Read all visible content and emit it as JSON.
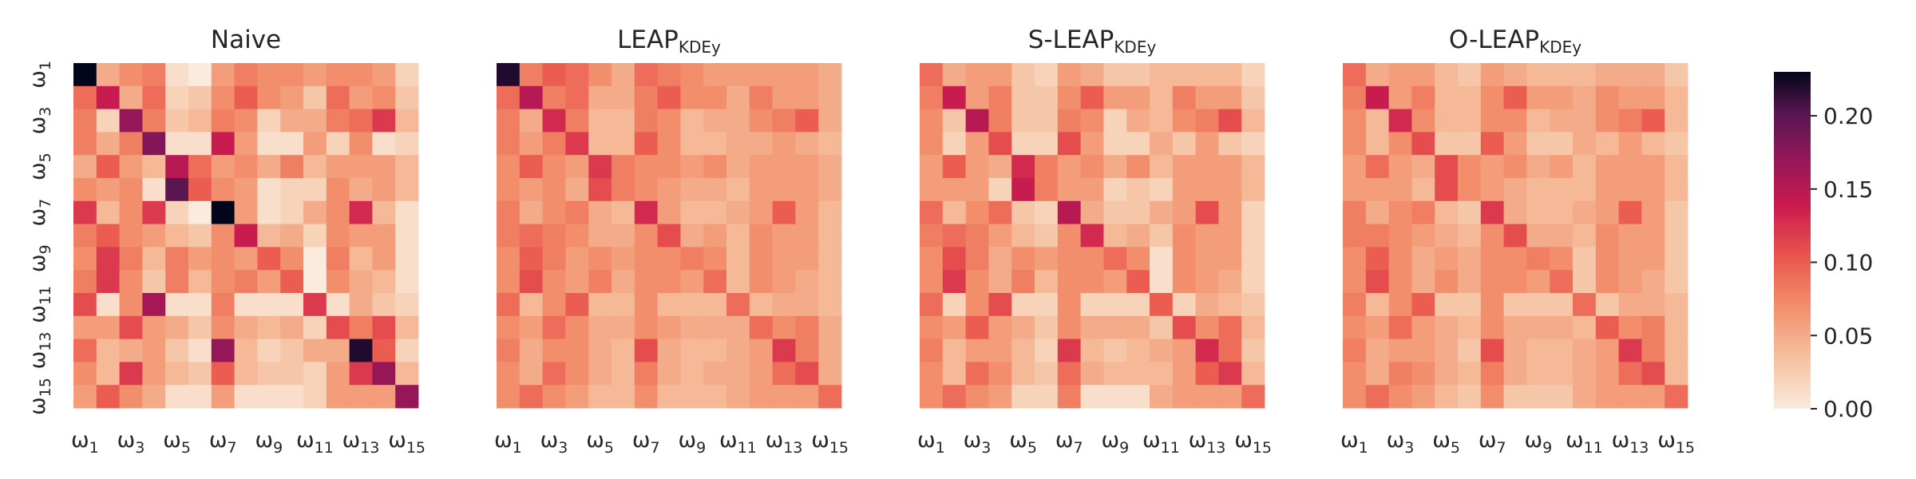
{
  "chart_data": {
    "type": "heatmap",
    "colormap": "rocket_r",
    "colorbar": {
      "range": [
        0,
        0.23
      ],
      "ticks": [
        "0.00",
        "0.05",
        "0.10",
        "0.15",
        "0.20"
      ]
    },
    "x_tick_labels": [
      {
        "base": "ω",
        "sub": "1"
      },
      {
        "base": "ω",
        "sub": "3"
      },
      {
        "base": "ω",
        "sub": "5"
      },
      {
        "base": "ω",
        "sub": "7"
      },
      {
        "base": "ω",
        "sub": "9"
      },
      {
        "base": "ω",
        "sub": "11"
      },
      {
        "base": "ω",
        "sub": "13"
      },
      {
        "base": "ω",
        "sub": "15"
      }
    ],
    "y_tick_labels": [
      {
        "base": "ω",
        "sub": "1"
      },
      {
        "base": "ω",
        "sub": "3"
      },
      {
        "base": "ω",
        "sub": "5"
      },
      {
        "base": "ω",
        "sub": "7"
      },
      {
        "base": "ω",
        "sub": "9"
      },
      {
        "base": "ω",
        "sub": "11"
      },
      {
        "base": "ω",
        "sub": "13"
      },
      {
        "base": "ω",
        "sub": "15"
      }
    ],
    "panels": [
      {
        "title": "Naive",
        "title_sub": "",
        "matrix": [
          [
            0.23,
            0.05,
            0.07,
            0.08,
            0.01,
            0.0,
            0.06,
            0.08,
            0.07,
            0.07,
            0.06,
            0.07,
            0.07,
            0.06,
            0.02
          ],
          [
            0.09,
            0.14,
            0.05,
            0.09,
            0.02,
            0.03,
            0.07,
            0.1,
            0.07,
            0.06,
            0.03,
            0.09,
            0.06,
            0.07,
            0.03
          ],
          [
            0.08,
            0.02,
            0.17,
            0.08,
            0.03,
            0.04,
            0.08,
            0.07,
            0.02,
            0.05,
            0.05,
            0.08,
            0.09,
            0.12,
            0.04
          ],
          [
            0.08,
            0.05,
            0.08,
            0.18,
            0.01,
            0.01,
            0.14,
            0.06,
            0.01,
            0.01,
            0.06,
            0.02,
            0.07,
            0.01,
            0.02
          ],
          [
            0.05,
            0.1,
            0.06,
            0.04,
            0.15,
            0.09,
            0.06,
            0.07,
            0.05,
            0.08,
            0.04,
            0.06,
            0.06,
            0.06,
            0.04
          ],
          [
            0.07,
            0.06,
            0.07,
            0.01,
            0.2,
            0.1,
            0.07,
            0.06,
            0.01,
            0.02,
            0.02,
            0.07,
            0.05,
            0.06,
            0.04
          ],
          [
            0.12,
            0.04,
            0.07,
            0.12,
            0.02,
            0.0,
            0.23,
            0.06,
            0.01,
            0.02,
            0.05,
            0.07,
            0.13,
            0.04,
            0.01
          ],
          [
            0.08,
            0.1,
            0.07,
            0.06,
            0.04,
            0.03,
            0.07,
            0.14,
            0.04,
            0.05,
            0.02,
            0.07,
            0.06,
            0.06,
            0.01
          ],
          [
            0.07,
            0.12,
            0.08,
            0.04,
            0.08,
            0.06,
            0.07,
            0.06,
            0.1,
            0.07,
            0.0,
            0.08,
            0.04,
            0.06,
            0.01
          ],
          [
            0.08,
            0.12,
            0.07,
            0.03,
            0.08,
            0.04,
            0.07,
            0.08,
            0.06,
            0.1,
            0.0,
            0.07,
            0.05,
            0.04,
            0.01
          ],
          [
            0.11,
            0.01,
            0.07,
            0.16,
            0.01,
            0.01,
            0.08,
            0.01,
            0.01,
            0.01,
            0.12,
            0.01,
            0.05,
            0.03,
            0.02
          ],
          [
            0.06,
            0.06,
            0.11,
            0.06,
            0.05,
            0.03,
            0.07,
            0.05,
            0.04,
            0.05,
            0.02,
            0.11,
            0.08,
            0.11,
            0.04
          ],
          [
            0.09,
            0.04,
            0.05,
            0.06,
            0.03,
            0.01,
            0.17,
            0.04,
            0.02,
            0.03,
            0.05,
            0.05,
            0.22,
            0.1,
            0.02
          ],
          [
            0.07,
            0.04,
            0.12,
            0.06,
            0.04,
            0.03,
            0.1,
            0.04,
            0.03,
            0.03,
            0.02,
            0.06,
            0.12,
            0.17,
            0.04
          ],
          [
            0.06,
            0.1,
            0.07,
            0.05,
            0.01,
            0.01,
            0.06,
            0.01,
            0.01,
            0.01,
            0.02,
            0.06,
            0.06,
            0.06,
            0.17
          ]
        ]
      },
      {
        "title": "LEAP",
        "title_sub": "KDEy",
        "matrix": [
          [
            0.22,
            0.08,
            0.1,
            0.09,
            0.07,
            0.05,
            0.09,
            0.08,
            0.07,
            0.06,
            0.06,
            0.06,
            0.06,
            0.06,
            0.05
          ],
          [
            0.09,
            0.15,
            0.08,
            0.09,
            0.05,
            0.05,
            0.08,
            0.1,
            0.07,
            0.07,
            0.05,
            0.08,
            0.06,
            0.06,
            0.05
          ],
          [
            0.08,
            0.05,
            0.13,
            0.08,
            0.04,
            0.04,
            0.08,
            0.07,
            0.04,
            0.05,
            0.05,
            0.07,
            0.08,
            0.1,
            0.05
          ],
          [
            0.08,
            0.06,
            0.08,
            0.12,
            0.04,
            0.04,
            0.1,
            0.07,
            0.04,
            0.04,
            0.05,
            0.05,
            0.06,
            0.05,
            0.04
          ],
          [
            0.07,
            0.1,
            0.07,
            0.06,
            0.12,
            0.08,
            0.07,
            0.07,
            0.06,
            0.07,
            0.05,
            0.06,
            0.06,
            0.06,
            0.05
          ],
          [
            0.07,
            0.06,
            0.07,
            0.05,
            0.11,
            0.08,
            0.07,
            0.06,
            0.05,
            0.05,
            0.04,
            0.06,
            0.06,
            0.06,
            0.05
          ],
          [
            0.08,
            0.05,
            0.07,
            0.08,
            0.05,
            0.04,
            0.13,
            0.06,
            0.04,
            0.04,
            0.05,
            0.06,
            0.1,
            0.06,
            0.04
          ],
          [
            0.08,
            0.09,
            0.08,
            0.07,
            0.05,
            0.05,
            0.07,
            0.11,
            0.05,
            0.06,
            0.04,
            0.07,
            0.06,
            0.06,
            0.04
          ],
          [
            0.07,
            0.1,
            0.08,
            0.06,
            0.07,
            0.06,
            0.07,
            0.07,
            0.08,
            0.07,
            0.04,
            0.07,
            0.06,
            0.06,
            0.04
          ],
          [
            0.07,
            0.11,
            0.07,
            0.06,
            0.08,
            0.05,
            0.07,
            0.07,
            0.06,
            0.09,
            0.04,
            0.07,
            0.06,
            0.05,
            0.04
          ],
          [
            0.09,
            0.04,
            0.07,
            0.1,
            0.04,
            0.04,
            0.07,
            0.04,
            0.04,
            0.04,
            0.09,
            0.04,
            0.05,
            0.05,
            0.04
          ],
          [
            0.07,
            0.06,
            0.09,
            0.07,
            0.05,
            0.05,
            0.07,
            0.06,
            0.05,
            0.05,
            0.05,
            0.09,
            0.07,
            0.08,
            0.05
          ],
          [
            0.08,
            0.05,
            0.07,
            0.07,
            0.05,
            0.04,
            0.11,
            0.05,
            0.04,
            0.04,
            0.05,
            0.06,
            0.12,
            0.08,
            0.05
          ],
          [
            0.07,
            0.05,
            0.09,
            0.07,
            0.05,
            0.04,
            0.08,
            0.05,
            0.04,
            0.05,
            0.05,
            0.06,
            0.09,
            0.11,
            0.05
          ],
          [
            0.07,
            0.09,
            0.07,
            0.06,
            0.04,
            0.04,
            0.07,
            0.04,
            0.04,
            0.04,
            0.05,
            0.06,
            0.06,
            0.06,
            0.09
          ]
        ]
      },
      {
        "title": "S-LEAP",
        "title_sub": "KDEy",
        "matrix": [
          [
            0.09,
            0.05,
            0.06,
            0.06,
            0.03,
            0.02,
            0.06,
            0.05,
            0.03,
            0.03,
            0.04,
            0.04,
            0.04,
            0.04,
            0.02
          ],
          [
            0.08,
            0.14,
            0.06,
            0.08,
            0.03,
            0.03,
            0.07,
            0.1,
            0.06,
            0.06,
            0.04,
            0.08,
            0.06,
            0.06,
            0.03
          ],
          [
            0.07,
            0.03,
            0.15,
            0.08,
            0.03,
            0.03,
            0.08,
            0.07,
            0.02,
            0.05,
            0.04,
            0.07,
            0.08,
            0.11,
            0.04
          ],
          [
            0.07,
            0.02,
            0.06,
            0.11,
            0.02,
            0.02,
            0.11,
            0.06,
            0.02,
            0.02,
            0.05,
            0.03,
            0.06,
            0.03,
            0.02
          ],
          [
            0.06,
            0.1,
            0.06,
            0.05,
            0.13,
            0.08,
            0.06,
            0.07,
            0.05,
            0.07,
            0.04,
            0.06,
            0.06,
            0.06,
            0.04
          ],
          [
            0.06,
            0.06,
            0.06,
            0.02,
            0.14,
            0.08,
            0.06,
            0.06,
            0.02,
            0.03,
            0.02,
            0.06,
            0.06,
            0.06,
            0.04
          ],
          [
            0.09,
            0.04,
            0.07,
            0.09,
            0.03,
            0.02,
            0.15,
            0.05,
            0.03,
            0.03,
            0.05,
            0.06,
            0.11,
            0.06,
            0.02
          ],
          [
            0.08,
            0.09,
            0.08,
            0.06,
            0.04,
            0.03,
            0.07,
            0.13,
            0.04,
            0.05,
            0.03,
            0.07,
            0.06,
            0.06,
            0.02
          ],
          [
            0.07,
            0.11,
            0.08,
            0.05,
            0.07,
            0.06,
            0.07,
            0.07,
            0.09,
            0.07,
            0.01,
            0.07,
            0.06,
            0.06,
            0.02
          ],
          [
            0.07,
            0.12,
            0.07,
            0.05,
            0.08,
            0.04,
            0.07,
            0.07,
            0.06,
            0.1,
            0.01,
            0.07,
            0.06,
            0.05,
            0.02
          ],
          [
            0.09,
            0.02,
            0.07,
            0.11,
            0.02,
            0.02,
            0.07,
            0.02,
            0.02,
            0.02,
            0.1,
            0.02,
            0.05,
            0.04,
            0.03
          ],
          [
            0.07,
            0.06,
            0.1,
            0.06,
            0.05,
            0.03,
            0.07,
            0.05,
            0.05,
            0.05,
            0.03,
            0.11,
            0.07,
            0.09,
            0.04
          ],
          [
            0.08,
            0.04,
            0.06,
            0.06,
            0.04,
            0.02,
            0.12,
            0.04,
            0.03,
            0.04,
            0.05,
            0.06,
            0.13,
            0.09,
            0.03
          ],
          [
            0.07,
            0.04,
            0.09,
            0.07,
            0.04,
            0.03,
            0.09,
            0.05,
            0.04,
            0.04,
            0.04,
            0.06,
            0.1,
            0.12,
            0.04
          ],
          [
            0.07,
            0.09,
            0.07,
            0.06,
            0.02,
            0.02,
            0.08,
            0.01,
            0.01,
            0.01,
            0.05,
            0.06,
            0.06,
            0.06,
            0.09
          ]
        ]
      },
      {
        "title": "O-LEAP",
        "title_sub": "KDEy",
        "matrix": [
          [
            0.09,
            0.05,
            0.06,
            0.06,
            0.04,
            0.03,
            0.06,
            0.05,
            0.04,
            0.04,
            0.04,
            0.05,
            0.05,
            0.05,
            0.03
          ],
          [
            0.08,
            0.14,
            0.06,
            0.08,
            0.04,
            0.04,
            0.07,
            0.1,
            0.06,
            0.06,
            0.05,
            0.07,
            0.06,
            0.06,
            0.04
          ],
          [
            0.07,
            0.04,
            0.13,
            0.07,
            0.04,
            0.04,
            0.07,
            0.07,
            0.04,
            0.05,
            0.05,
            0.07,
            0.08,
            0.1,
            0.04
          ],
          [
            0.07,
            0.04,
            0.07,
            0.11,
            0.03,
            0.03,
            0.1,
            0.06,
            0.03,
            0.03,
            0.05,
            0.04,
            0.06,
            0.04,
            0.03
          ],
          [
            0.06,
            0.09,
            0.06,
            0.05,
            0.11,
            0.07,
            0.06,
            0.07,
            0.05,
            0.06,
            0.04,
            0.06,
            0.06,
            0.06,
            0.04
          ],
          [
            0.06,
            0.06,
            0.06,
            0.04,
            0.11,
            0.07,
            0.06,
            0.05,
            0.04,
            0.04,
            0.04,
            0.06,
            0.06,
            0.06,
            0.04
          ],
          [
            0.08,
            0.05,
            0.07,
            0.08,
            0.04,
            0.03,
            0.12,
            0.05,
            0.04,
            0.04,
            0.05,
            0.06,
            0.1,
            0.06,
            0.03
          ],
          [
            0.08,
            0.08,
            0.07,
            0.06,
            0.05,
            0.04,
            0.07,
            0.11,
            0.05,
            0.05,
            0.04,
            0.07,
            0.06,
            0.06,
            0.03
          ],
          [
            0.07,
            0.1,
            0.07,
            0.05,
            0.06,
            0.05,
            0.07,
            0.07,
            0.08,
            0.07,
            0.03,
            0.07,
            0.06,
            0.06,
            0.03
          ],
          [
            0.07,
            0.11,
            0.07,
            0.05,
            0.07,
            0.05,
            0.07,
            0.07,
            0.06,
            0.09,
            0.03,
            0.07,
            0.06,
            0.05,
            0.03
          ],
          [
            0.08,
            0.04,
            0.07,
            0.1,
            0.03,
            0.03,
            0.07,
            0.03,
            0.03,
            0.03,
            0.09,
            0.03,
            0.05,
            0.05,
            0.04
          ],
          [
            0.07,
            0.06,
            0.09,
            0.06,
            0.05,
            0.04,
            0.07,
            0.05,
            0.05,
            0.05,
            0.04,
            0.1,
            0.07,
            0.08,
            0.04
          ],
          [
            0.08,
            0.05,
            0.06,
            0.06,
            0.05,
            0.03,
            0.11,
            0.05,
            0.04,
            0.04,
            0.05,
            0.06,
            0.12,
            0.08,
            0.04
          ],
          [
            0.07,
            0.05,
            0.08,
            0.07,
            0.05,
            0.04,
            0.08,
            0.05,
            0.04,
            0.04,
            0.05,
            0.06,
            0.09,
            0.11,
            0.04
          ],
          [
            0.07,
            0.09,
            0.07,
            0.06,
            0.04,
            0.03,
            0.07,
            0.03,
            0.03,
            0.03,
            0.05,
            0.06,
            0.06,
            0.06,
            0.09
          ]
        ]
      }
    ]
  }
}
